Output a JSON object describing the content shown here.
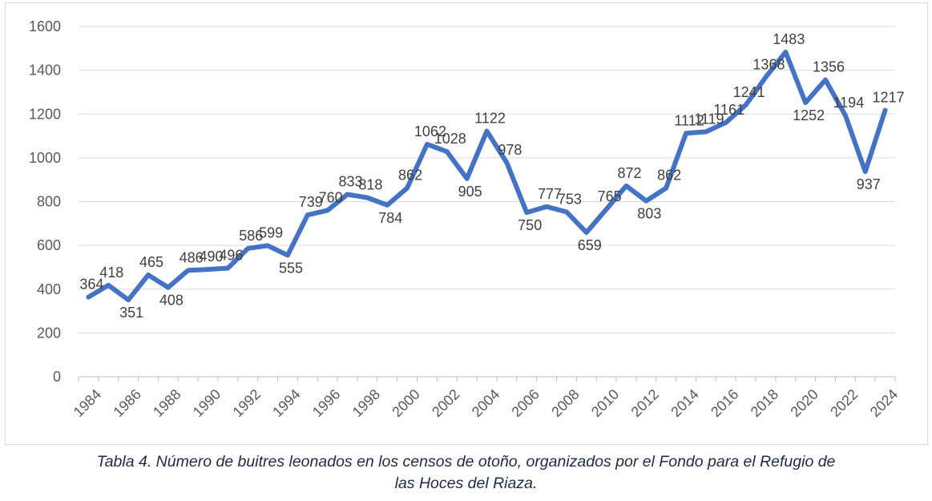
{
  "chart_data": {
    "type": "line",
    "x": [
      "1984",
      "1985",
      "1986",
      "1987",
      "1988",
      "1989",
      "1990",
      "1991",
      "1992",
      "1993",
      "1994",
      "1995",
      "1996",
      "1997",
      "1998",
      "1999",
      "2000",
      "2001",
      "2002",
      "2003",
      "2004",
      "2005",
      "2006",
      "2007",
      "2008",
      "2009",
      "2010",
      "2011",
      "2012",
      "2013",
      "2014",
      "2015",
      "2016",
      "2017",
      "2018",
      "2019",
      "2020",
      "2021",
      "2022",
      "2023",
      "2024"
    ],
    "x_tick_labels": [
      "1984",
      "1986",
      "1988",
      "1990",
      "1992",
      "1994",
      "1996",
      "1998",
      "2000",
      "2002",
      "2004",
      "2006",
      "2008",
      "2010",
      "2012",
      "2014",
      "2016",
      "2018",
      "2020",
      "2022",
      "2024"
    ],
    "series": [
      {
        "values": [
          364,
          418,
          351,
          465,
          408,
          486,
          490,
          496,
          586,
          599,
          555,
          739,
          760,
          833,
          818,
          784,
          862,
          1062,
          1028,
          905,
          1122,
          978,
          750,
          777,
          753,
          659,
          765,
          872,
          803,
          862,
          1112,
          1119,
          1161,
          1241,
          1368,
          1483,
          1252,
          1356,
          1194,
          937,
          1217
        ],
        "color": "#4472c4"
      }
    ],
    "ylim": [
      0,
      1600
    ],
    "yticks": [
      0,
      200,
      400,
      600,
      800,
      1000,
      1200,
      1400,
      1600
    ],
    "grid": true,
    "data_labels": true,
    "title": "",
    "xlabel": "",
    "ylabel": ""
  },
  "caption": {
    "line1": "Tabla 4. Número de buitres leonados en los censos de otoño, organizados por el Fondo para el Refugio de",
    "line2": "las Hoces del Riaza."
  }
}
